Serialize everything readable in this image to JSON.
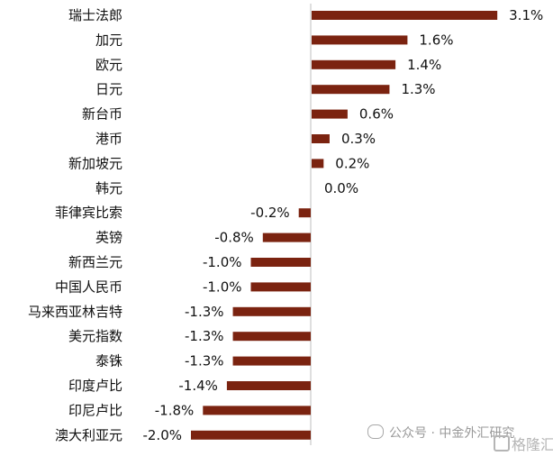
{
  "chart_data": {
    "type": "bar",
    "orientation": "horizontal",
    "categories": [
      "瑞士法郎",
      "加元",
      "欧元",
      "日元",
      "新台币",
      "港币",
      "新加坡元",
      "韩元",
      "菲律宾比索",
      "英镑",
      "新西兰元",
      "中国人民币",
      "马来西亚林吉特",
      "美元指数",
      "泰铢",
      "印度卢比",
      "印尼卢比",
      "澳大利亚元"
    ],
    "values": [
      3.1,
      1.6,
      1.4,
      1.3,
      0.6,
      0.3,
      0.2,
      0.0,
      -0.2,
      -0.8,
      -1.0,
      -1.0,
      -1.3,
      -1.3,
      -1.3,
      -1.4,
      -1.8,
      -2.0
    ],
    "value_labels": [
      "3.1%",
      "1.6%",
      "1.4%",
      "1.3%",
      "0.6%",
      "0.3%",
      "0.2%",
      "0.0%",
      "-0.2%",
      "-0.8%",
      "-1.0%",
      "-1.0%",
      "-1.3%",
      "-1.3%",
      "-1.3%",
      "-1.4%",
      "-1.8%",
      "-2.0%"
    ],
    "bar_color": "#7B2310",
    "axis_color": "#bfbfbf",
    "xlim": [
      -2.0,
      3.1
    ],
    "grid": false,
    "title": "",
    "xlabel": "",
    "ylabel": ""
  },
  "watermark": {
    "text": "公众号 · 中金外汇研究",
    "icon": "wechat-icon"
  },
  "brand": {
    "text": "格隆汇",
    "icon": "gelonghui-logo-icon"
  }
}
